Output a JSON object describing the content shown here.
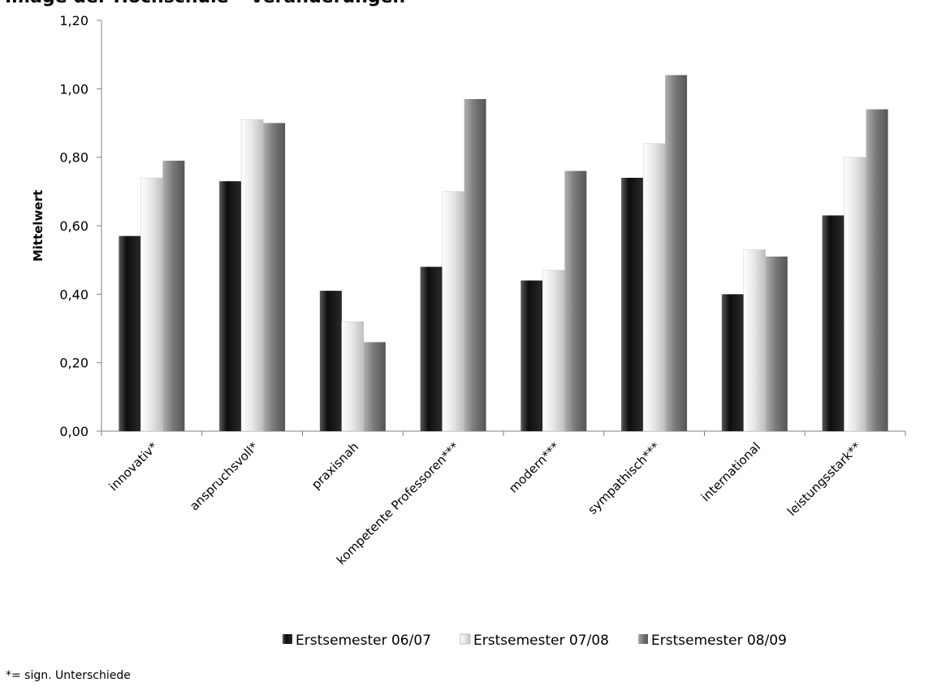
{
  "title": "Image der Hochschule – Veränderungen",
  "footnote": "*= sign. Unterschiede",
  "chart_data": {
    "type": "bar",
    "title": "",
    "xlabel": "",
    "ylabel": "Mittelwert",
    "ylim": [
      0,
      1.2
    ],
    "yticks": [
      "0,00",
      "0,20",
      "0,40",
      "0,60",
      "0,80",
      "1,00",
      "1,20"
    ],
    "categories": [
      "innovativ*",
      "anspruchsvoll*",
      "praxisnah",
      "kompetente Professoren***",
      "modern***",
      "sympathisch***",
      "international",
      "leistungsstark**"
    ],
    "series": [
      {
        "name": "Erstsemester 06/07",
        "color": "#1a1a1a",
        "values": [
          0.57,
          0.73,
          0.41,
          0.48,
          0.44,
          0.74,
          0.4,
          0.63
        ]
      },
      {
        "name": "Erstsemester 07/08",
        "color": "#e2e2e2",
        "values": [
          0.74,
          0.91,
          0.32,
          0.7,
          0.47,
          0.84,
          0.53,
          0.8
        ]
      },
      {
        "name": "Erstsemester 08/09",
        "color": "#7a7a7a",
        "values": [
          0.79,
          0.9,
          0.26,
          0.97,
          0.76,
          1.04,
          0.51,
          0.94
        ]
      }
    ],
    "grid": false,
    "legend": "bottom"
  }
}
